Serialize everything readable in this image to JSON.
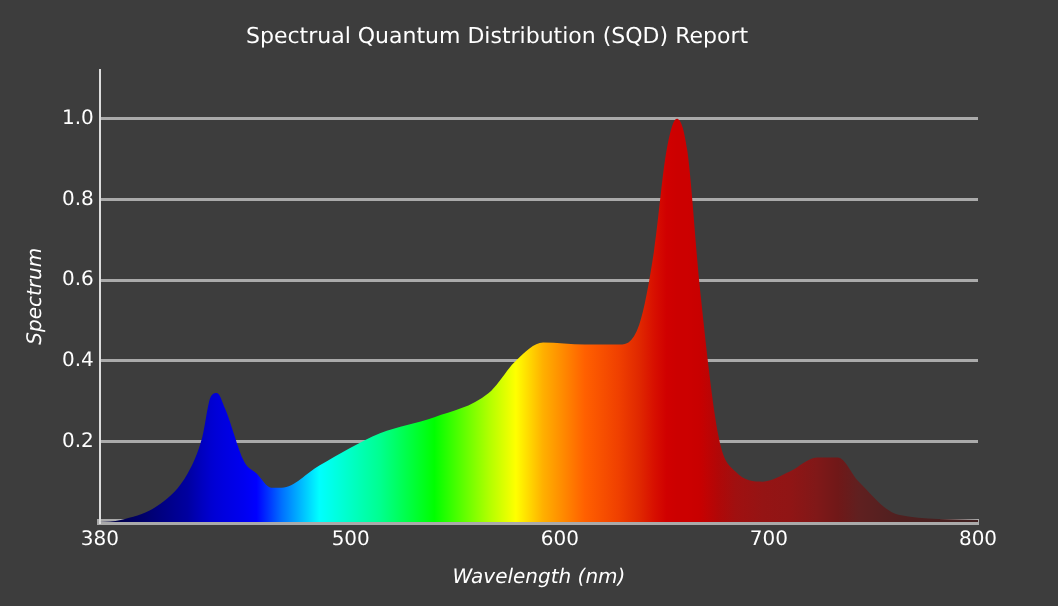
{
  "chart_data": {
    "type": "area",
    "title": "Spectrual Quantum Distribution (SQD) Report",
    "xlabel": "Wavelength (nm)",
    "ylabel": "Spectrum",
    "x": [
      380,
      390,
      409,
      422,
      429,
      433,
      436,
      440,
      449,
      455,
      462,
      467,
      485,
      514,
      540,
      566,
      579,
      592,
      612,
      628,
      638,
      645,
      651,
      656,
      661,
      667,
      676,
      684,
      697,
      710,
      723,
      733,
      743,
      762,
      800
    ],
    "series": [
      {
        "values": [
          0,
          0.005,
          0.045,
          0.12,
          0.21,
          0.31,
          0.32,
          0.28,
          0.15,
          0.12,
          0.085,
          0.085,
          0.14,
          0.22,
          0.26,
          0.32,
          0.4,
          0.445,
          0.44,
          0.44,
          0.49,
          0.67,
          0.92,
          1.0,
          0.92,
          0.58,
          0.21,
          0.125,
          0.1,
          0.125,
          0.16,
          0.16,
          0.1,
          0.018,
          0.005
        ],
        "colors": [
          "#000040",
          "#000050",
          "#000080",
          "#0000a0",
          "#0000c0",
          "#0000d0",
          "#0000d8",
          "#0000e0",
          "#0000f0",
          "#0000ff",
          "#0040ff",
          "#0070ff",
          "#00ffff",
          "#00ff90",
          "#00ff00",
          "#b0ff00",
          "#ffff00",
          "#ffb000",
          "#ff6000",
          "#f04000",
          "#e02800",
          "#d81000",
          "#d00000",
          "#cc0000",
          "#cc0000",
          "#c80000",
          "#b00808",
          "#a01010",
          "#951414",
          "#901515",
          "#801818",
          "#701818",
          "#602020",
          "#502020",
          "#402020"
        ]
      }
    ],
    "xlim": [
      380,
      800
    ],
    "xticks": [
      380,
      500,
      600,
      700,
      800
    ],
    "ylim": [
      0,
      1.12
    ],
    "yticks": [
      0.2,
      0.4,
      0.6,
      0.8,
      {
        "value": 1,
        "label": "1.0"
      }
    ],
    "grid": "y",
    "legend": false,
    "marker": "none"
  }
}
